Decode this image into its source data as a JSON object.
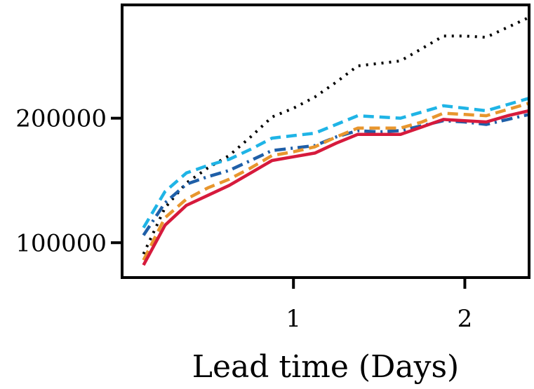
{
  "chart_data": {
    "type": "line",
    "title": "",
    "xlabel": "Lead time (Days)",
    "ylabel": "",
    "xlim": [
      0,
      2.375
    ],
    "ylim": [
      72000,
      291000
    ],
    "x_ticks": [
      1,
      2
    ],
    "x_tick_labels": [
      "1",
      "2"
    ],
    "y_ticks": [
      100000,
      200000
    ],
    "y_tick_labels": [
      "100000",
      "200000"
    ],
    "x": [
      0.125,
      0.25,
      0.375,
      0.5,
      0.625,
      0.75,
      0.875,
      1.0,
      1.125,
      1.25,
      1.375,
      1.5,
      1.625,
      1.75,
      1.875,
      2.0,
      2.125,
      2.25,
      2.375
    ],
    "series": [
      {
        "name": "dotted-black",
        "color": "#000000",
        "dash": "dotted",
        "values": [
          91000,
          128000,
          148000,
          160000,
          170000,
          185000,
          201000,
          208000,
          217000,
          229000,
          242000,
          244000,
          246000,
          256000,
          266000,
          266000,
          265000,
          273000,
          281000
        ]
      },
      {
        "name": "dashed-cyan",
        "color": "#1fb4e6",
        "dash": "dashed",
        "values": [
          112000,
          141000,
          156000,
          162000,
          167000,
          175000,
          184000,
          186000,
          188000,
          195000,
          202000,
          201000,
          200000,
          205000,
          210000,
          208000,
          206000,
          211000,
          216000
        ]
      },
      {
        "name": "dashdot-blue",
        "color": "#1f5fa8",
        "dash": "dashdot",
        "values": [
          106000,
          132000,
          147000,
          153000,
          158000,
          166000,
          174000,
          176000,
          178000,
          185000,
          190000,
          189000,
          190000,
          194000,
          198000,
          197000,
          195000,
          199000,
          203000
        ]
      },
      {
        "name": "dashed-orange",
        "color": "#e8962e",
        "dash": "dashed",
        "values": [
          86000,
          120000,
          135000,
          144000,
          151000,
          160000,
          170000,
          173000,
          177000,
          185000,
          192000,
          192000,
          192000,
          197000,
          204000,
          203000,
          202000,
          207000,
          212000
        ]
      },
      {
        "name": "solid-red",
        "color": "#d61a3c",
        "dash": "solid",
        "values": [
          82000,
          114000,
          130000,
          138000,
          146000,
          156000,
          166000,
          169000,
          172000,
          180000,
          187000,
          187000,
          187000,
          193000,
          199000,
          198000,
          197000,
          202000,
          206000
        ]
      }
    ]
  }
}
